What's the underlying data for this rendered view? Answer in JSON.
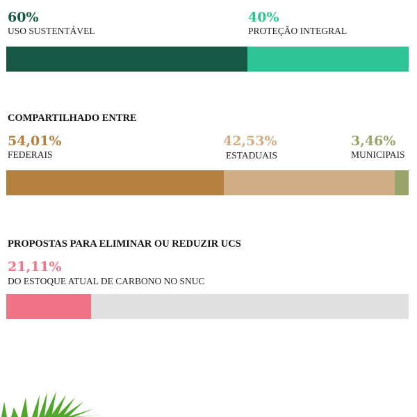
{
  "section1": {
    "items": [
      {
        "percent": "60%",
        "label": "USO SUSTENTÁVEL",
        "value": 60,
        "color": "#165844"
      },
      {
        "percent": "40%",
        "label": "PROTEÇÃO INTEGRAL",
        "value": 40,
        "color": "#2dc596"
      }
    ]
  },
  "section2": {
    "heading": "COMPARTILHADO ENTRE",
    "items": [
      {
        "percent": "54,01%",
        "label": "FEDERAIS",
        "value": 54.01,
        "color": "#b57f40"
      },
      {
        "percent": "42,53%",
        "label": "ESTADUAIS",
        "value": 42.53,
        "color": "#d0ad82"
      },
      {
        "percent": "3,46%",
        "label": "MUNICIPAIS",
        "value": 3.46,
        "color": "#99a46a"
      }
    ]
  },
  "section3": {
    "heading": "PROPOSTAS PARA ELIMINAR OU REDUZIR UCS",
    "percent": "21,11%",
    "label": "DO ESTOQUE ATUAL DE CARBONO NO SNUC",
    "value": 21.11,
    "color": "#f27385",
    "track_color": "#e0e0e0"
  }
}
